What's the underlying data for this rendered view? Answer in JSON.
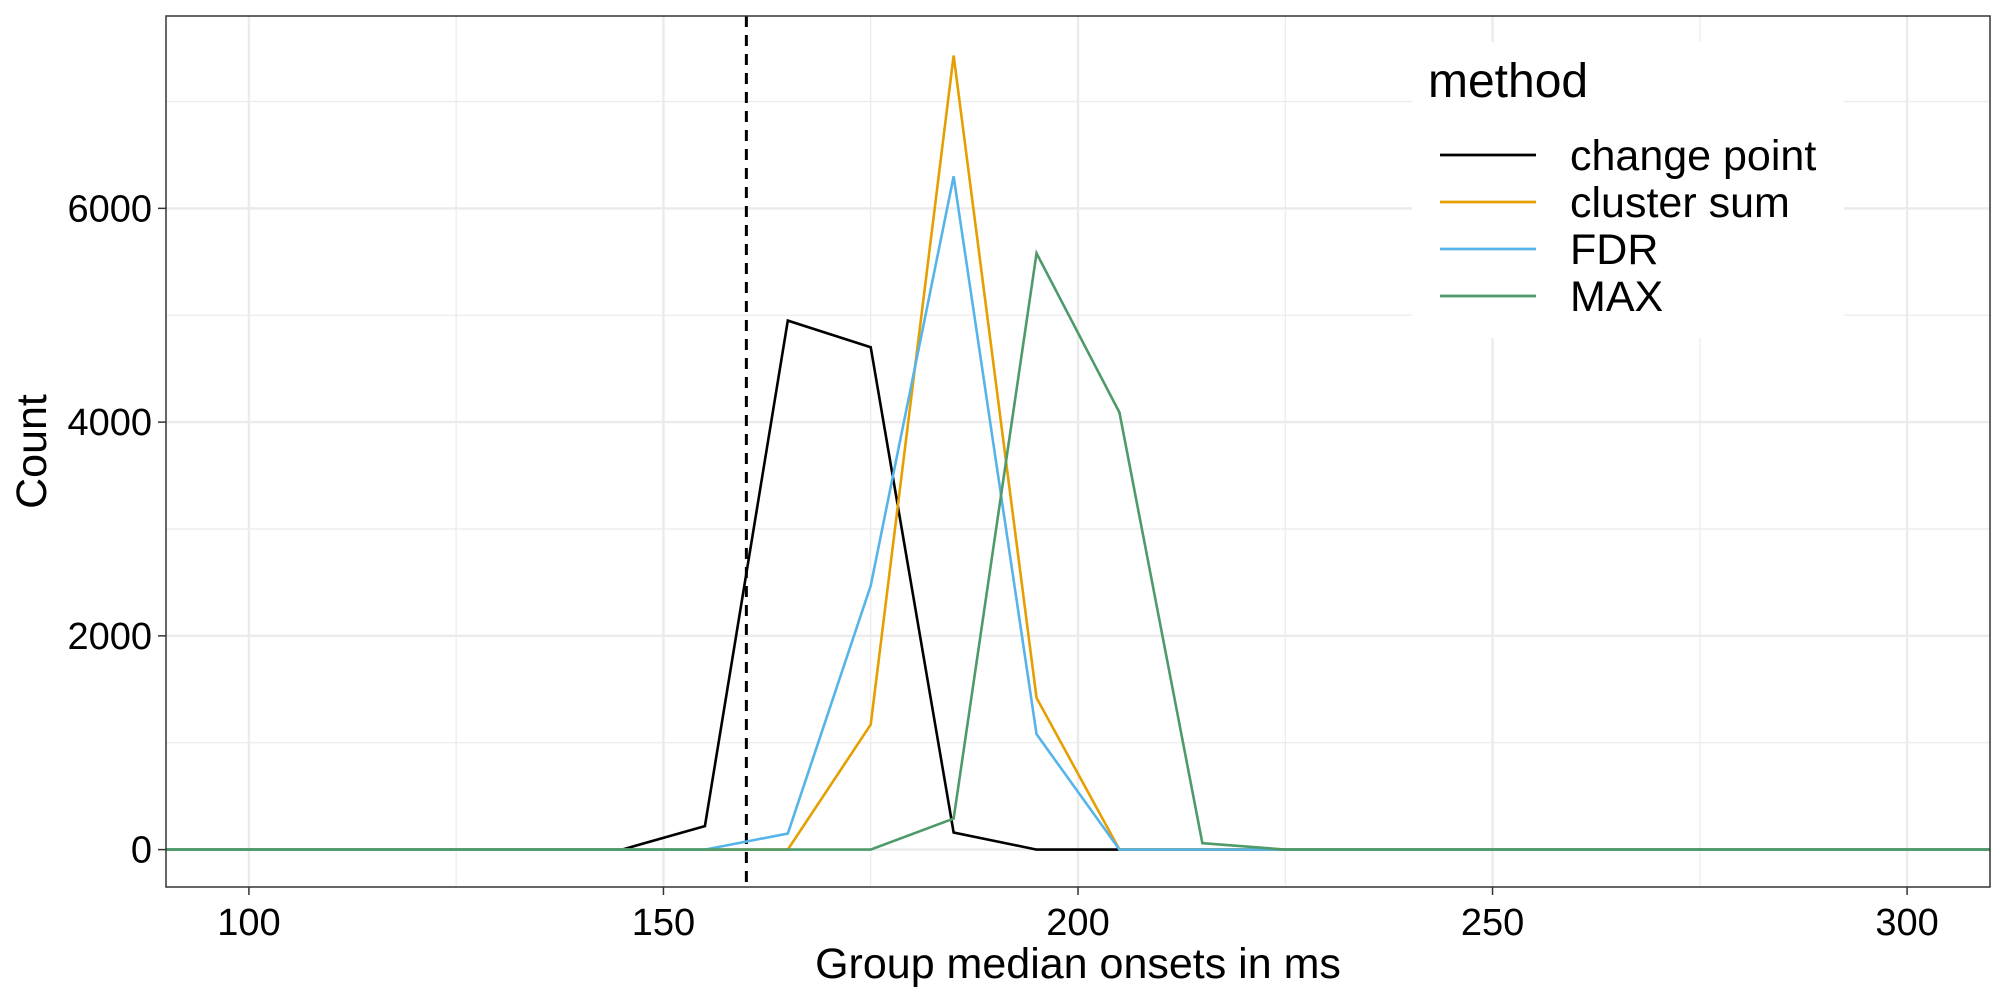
{
  "chart_data": {
    "type": "line",
    "title": "",
    "xlabel": "Group median onsets in ms",
    "ylabel": "Count",
    "xlim": [
      90,
      310
    ],
    "ylim": [
      -350,
      7800
    ],
    "xticks": [
      100,
      150,
      200,
      250,
      300
    ],
    "yticks": [
      0,
      2000,
      4000,
      6000
    ],
    "grid": true,
    "legend": {
      "title": "method",
      "position": "top-right"
    },
    "reference_line": {
      "x": 160,
      "style": "dashed",
      "color": "#000000"
    },
    "x": [
      85,
      95,
      105,
      115,
      125,
      135,
      145,
      155,
      165,
      175,
      185,
      195,
      205,
      215,
      225,
      235,
      245,
      255,
      265,
      275,
      285,
      295,
      305,
      315
    ],
    "series": [
      {
        "name": "change point",
        "color": "#000000",
        "values": [
          0,
          0,
          0,
          0,
          0,
          0,
          0,
          220,
          4950,
          4700,
          160,
          0,
          0,
          0,
          0,
          0,
          0,
          0,
          0,
          0,
          0,
          0,
          0,
          0
        ]
      },
      {
        "name": "cluster sum",
        "color": "#E69F00",
        "values": [
          0,
          0,
          0,
          0,
          0,
          0,
          0,
          0,
          0,
          1170,
          7430,
          1420,
          0,
          0,
          0,
          0,
          0,
          0,
          0,
          0,
          0,
          0,
          0,
          0
        ]
      },
      {
        "name": "FDR",
        "color": "#56B4E9",
        "values": [
          0,
          0,
          0,
          0,
          0,
          0,
          0,
          0,
          150,
          2470,
          6300,
          1080,
          0,
          0,
          0,
          0,
          0,
          0,
          0,
          0,
          0,
          0,
          0,
          0
        ]
      },
      {
        "name": "MAX",
        "color": "#4E9A6A",
        "values": [
          0,
          0,
          0,
          0,
          0,
          0,
          0,
          0,
          0,
          0,
          290,
          5580,
          4090,
          60,
          0,
          0,
          0,
          0,
          0,
          0,
          0,
          0,
          0,
          0
        ]
      }
    ]
  }
}
